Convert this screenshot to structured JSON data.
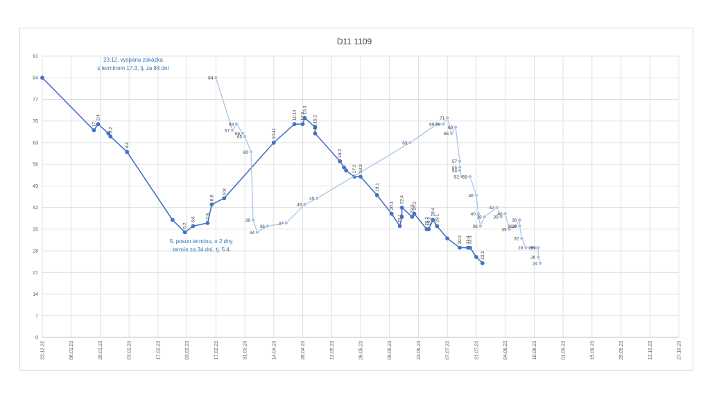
{
  "chart_data": {
    "type": "line",
    "title": "D11 1109",
    "xlabel": "",
    "ylabel": "",
    "y_ticks": [
      "0",
      "7",
      "14",
      "21",
      "28",
      "35",
      "42",
      "49",
      "56",
      "63",
      "70",
      "77",
      "84",
      "91"
    ],
    "ylim": [
      0,
      91
    ],
    "x_ticks": [
      "23.12.22",
      "06.01.23",
      "20.01.23",
      "03.02.23",
      "17.02.23",
      "03.03.23",
      "17.03.23",
      "31.03.23",
      "14.04.23",
      "28.04.23",
      "12.05.23",
      "26.05.23",
      "09.06.23",
      "23.06.23",
      "07.07.23",
      "21.07.23",
      "04.08.23",
      "18.08.23",
      "01.09.23",
      "15.09.23",
      "29.09.23",
      "13.10.23",
      "27.10.23"
    ],
    "xlim": [
      "2022-12-23",
      "2023-10-27"
    ],
    "grid": "horizontal and vertical",
    "legend": "none",
    "colors": {
      "dark": "#4472c4",
      "light": "#a9c4e8",
      "annotation": "#2e75b6"
    },
    "series": [
      {
        "color": "dark",
        "points": [
          [
            "2022-12-23",
            84,
            ""
          ],
          [
            "2023-01-17",
            67,
            "17:"
          ],
          [
            "2023-01-19",
            69,
            "2:4"
          ],
          [
            "2023-01-24",
            66,
            ""
          ],
          [
            "2023-01-25",
            65,
            "3:2"
          ],
          [
            "2023-02-02",
            60,
            "4:4"
          ],
          [
            "2023-02-24",
            38,
            ""
          ],
          [
            "2023-03-02",
            34,
            "5:2"
          ],
          [
            "2023-03-06",
            36,
            "6:6"
          ],
          [
            "2023-03-13",
            37,
            "7:8"
          ],
          [
            "2023-03-15",
            43,
            "8:8"
          ],
          [
            "2023-03-21",
            45,
            "9:8"
          ],
          [
            "2023-04-14",
            63,
            "10:41"
          ],
          [
            "2023-04-24",
            69,
            "11:14"
          ],
          [
            "2023-04-28",
            69,
            "12:5"
          ],
          [
            "2023-04-29",
            71,
            "13:3"
          ],
          [
            "2023-05-04",
            68,
            "15:2"
          ],
          [
            "2023-05-04",
            66,
            "14:1"
          ],
          [
            "2023-05-16",
            57,
            "16:2"
          ],
          [
            "2023-05-18",
            55,
            ""
          ],
          [
            "2023-05-19",
            54,
            ""
          ],
          [
            "2023-05-23",
            52,
            "17:2"
          ],
          [
            "2023-05-26",
            52,
            "18:3"
          ],
          [
            "2023-06-03",
            46,
            "19:1"
          ],
          [
            "2023-06-10",
            40,
            "20:1"
          ],
          [
            "2023-06-14",
            36,
            "21:1"
          ],
          [
            "2023-06-15",
            39,
            ""
          ],
          [
            "2023-06-15",
            42,
            "22:4"
          ],
          [
            "2023-06-20",
            39,
            "23:3"
          ],
          [
            "2023-06-21",
            40,
            "24:2"
          ],
          [
            "2023-06-27",
            35,
            "25:2"
          ],
          [
            "2023-06-28",
            35,
            "26:2"
          ],
          [
            "2023-06-30",
            38,
            "28:4"
          ],
          [
            "2023-07-02",
            36,
            "29:1"
          ],
          [
            "2023-07-07",
            32,
            ""
          ],
          [
            "2023-07-13",
            29,
            "30:3"
          ],
          [
            "2023-07-17",
            29,
            "31:4"
          ],
          [
            "2023-07-18",
            29,
            "32:1"
          ],
          [
            "2023-07-21",
            26,
            ""
          ],
          [
            "2023-07-24",
            24,
            "33:1"
          ]
        ]
      },
      {
        "color": "light",
        "points": [
          [
            "2023-03-17",
            84,
            "84"
          ],
          [
            "2023-03-25",
            67,
            "67"
          ],
          [
            "2023-03-27",
            69,
            "69"
          ],
          [
            "2023-03-30",
            66,
            "66"
          ],
          [
            "2023-03-31",
            65,
            "65"
          ],
          [
            "2023-04-03",
            60,
            "60"
          ],
          [
            "2023-04-04",
            38,
            "38"
          ],
          [
            "2023-04-06",
            34,
            "34"
          ],
          [
            "2023-04-11",
            36,
            "36"
          ],
          [
            "2023-04-20",
            37,
            "37"
          ],
          [
            "2023-04-29",
            43,
            "43"
          ],
          [
            "2023-05-05",
            45,
            "45"
          ],
          [
            "2023-06-19",
            63,
            "63"
          ],
          [
            "2023-07-02",
            69,
            "69"
          ],
          [
            "2023-07-05",
            69,
            "69"
          ],
          [
            "2023-07-07",
            71,
            "71"
          ],
          [
            "2023-07-09",
            66,
            "66"
          ],
          [
            "2023-07-11",
            68,
            "68"
          ],
          [
            "2023-07-13",
            57,
            "57"
          ],
          [
            "2023-07-13",
            55,
            "55"
          ],
          [
            "2023-07-13",
            54,
            "54"
          ],
          [
            "2023-07-14",
            52,
            "52"
          ],
          [
            "2023-07-18",
            52,
            "52"
          ],
          [
            "2023-07-21",
            46,
            "46"
          ],
          [
            "2023-07-22",
            40,
            "40"
          ],
          [
            "2023-07-23",
            36,
            "36"
          ],
          [
            "2023-07-25",
            39,
            "39"
          ],
          [
            "2023-07-31",
            42,
            "42"
          ],
          [
            "2023-08-02",
            39,
            "39"
          ],
          [
            "2023-08-04",
            40,
            "40"
          ],
          [
            "2023-08-06",
            35,
            "35"
          ],
          [
            "2023-08-09",
            36,
            "36"
          ],
          [
            "2023-08-11",
            38,
            "38"
          ],
          [
            "2023-08-11",
            36,
            "36"
          ],
          [
            "2023-08-12",
            32,
            "32"
          ],
          [
            "2023-08-14",
            29,
            "29"
          ],
          [
            "2023-08-19",
            29,
            "29"
          ],
          [
            "2023-08-20",
            29,
            "29"
          ],
          [
            "2023-08-20",
            26,
            "26"
          ],
          [
            "2023-08-21",
            24,
            "24"
          ]
        ]
      }
    ],
    "annotations": [
      {
        "lines": [
          "23.12. vyspána zakázka",
          "s termínem 17.3, tj. za 84 dní"
        ]
      },
      {
        "lines": [
          "5. posun termínu, o 2 dny.",
          "termín za 34 dní, tj. 5.4."
        ]
      }
    ]
  }
}
